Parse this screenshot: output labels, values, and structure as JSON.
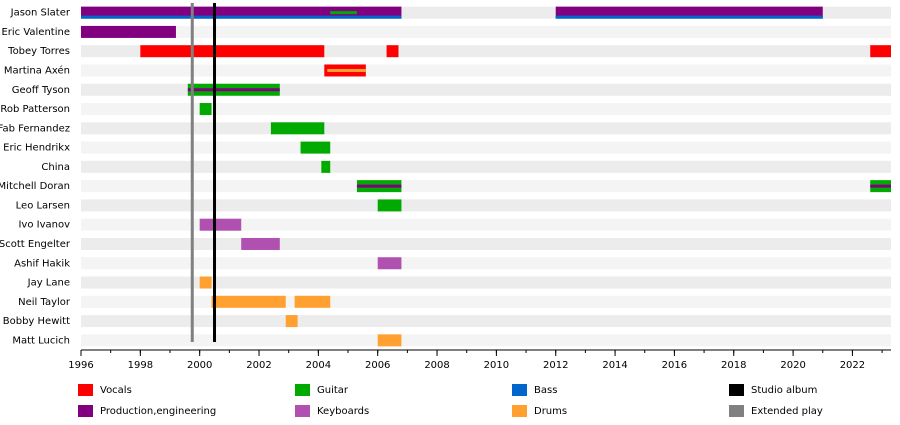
{
  "chart_data": {
    "type": "timeline",
    "members": [
      "Jason Slater",
      "Eric Valentine",
      "Tobey Torres",
      "Martina Axén",
      "Geoff Tyson",
      "Rob Patterson",
      "Fab Fernandez",
      "Eric Hendrikx",
      "China",
      "Mitchell Doran",
      "Leo Larsen",
      "Ivo Ivanov",
      "Scott Engelter",
      "Ashif Hakik",
      "Jay Lane",
      "Neil Taylor",
      "Bobby Hewitt",
      "Matt Lucich"
    ],
    "xlim": [
      1996,
      2023.3
    ],
    "xticks": [
      1996,
      1998,
      2000,
      2002,
      2004,
      2006,
      2008,
      2010,
      2012,
      2014,
      2016,
      2018,
      2020,
      2022
    ],
    "series": [
      {
        "name": "Vocals",
        "color": "#ff0000",
        "bars": [
          {
            "member": 2,
            "start": 1998,
            "end": 2004.2
          },
          {
            "member": 2,
            "start": 2006.3,
            "end": 2006.7
          },
          {
            "member": 2,
            "start": 2022.6,
            "end": 2023.3
          },
          {
            "member": 3,
            "start": 2004.2,
            "end": 2005.6
          }
        ]
      },
      {
        "name": "Production,engineering",
        "color": "#800080",
        "bars": [
          {
            "member": 0,
            "start": 1996,
            "end": 2006.8
          },
          {
            "member": 0,
            "start": 2012,
            "end": 2021
          },
          {
            "member": 1,
            "start": 1996,
            "end": 1999.2
          },
          {
            "member": 4,
            "start": 1999.6,
            "end": 2002.7,
            "stripe": "center"
          },
          {
            "member": 9,
            "start": 2005.3,
            "end": 2006.8,
            "stripe": "center"
          },
          {
            "member": 9,
            "start": 2022.6,
            "end": 2023.3,
            "stripe": "center"
          }
        ]
      },
      {
        "name": "Guitar",
        "color": "#00aa00",
        "bars": [
          {
            "member": 0,
            "start": 2004.4,
            "end": 2005.3,
            "stripe": "center"
          },
          {
            "member": 4,
            "start": 1999.6,
            "end": 2002.7
          },
          {
            "member": 5,
            "start": 2000,
            "end": 2000.4
          },
          {
            "member": 6,
            "start": 2002.4,
            "end": 2004.2
          },
          {
            "member": 7,
            "start": 2003.4,
            "end": 2004.4
          },
          {
            "member": 8,
            "start": 2004.1,
            "end": 2004.4
          },
          {
            "member": 9,
            "start": 2005.3,
            "end": 2006.8
          },
          {
            "member": 9,
            "start": 2022.6,
            "end": 2023.3
          },
          {
            "member": 10,
            "start": 2006,
            "end": 2006.8
          }
        ]
      },
      {
        "name": "Keyboards",
        "color": "#b050b0",
        "bars": [
          {
            "member": 11,
            "start": 2000,
            "end": 2001.4
          },
          {
            "member": 12,
            "start": 2001.4,
            "end": 2002.7
          },
          {
            "member": 13,
            "start": 2006,
            "end": 2006.8
          }
        ]
      },
      {
        "name": "Bass",
        "color": "#0066cc",
        "bars": [
          {
            "member": 0,
            "start": 1996,
            "end": 2006.8,
            "stripe": "bottom"
          },
          {
            "member": 0,
            "start": 2012,
            "end": 2021,
            "stripe": "bottom"
          }
        ]
      },
      {
        "name": "Drums",
        "color": "#ffa030",
        "bars": [
          {
            "member": 3,
            "start": 2004.3,
            "end": 2005.6,
            "stripe": "center"
          },
          {
            "member": 14,
            "start": 2000,
            "end": 2000.4
          },
          {
            "member": 15,
            "start": 2000.4,
            "end": 2002.9
          },
          {
            "member": 15,
            "start": 2003.2,
            "end": 2004.4
          },
          {
            "member": 16,
            "start": 2002.9,
            "end": 2003.3
          },
          {
            "member": 17,
            "start": 2006,
            "end": 2006.8
          }
        ]
      }
    ],
    "events": [
      {
        "name": "Studio album",
        "color": "#000000",
        "x": [
          2000.5
        ]
      },
      {
        "name": "Extended play",
        "color": "#808080",
        "x": [
          1999.75
        ]
      }
    ]
  }
}
